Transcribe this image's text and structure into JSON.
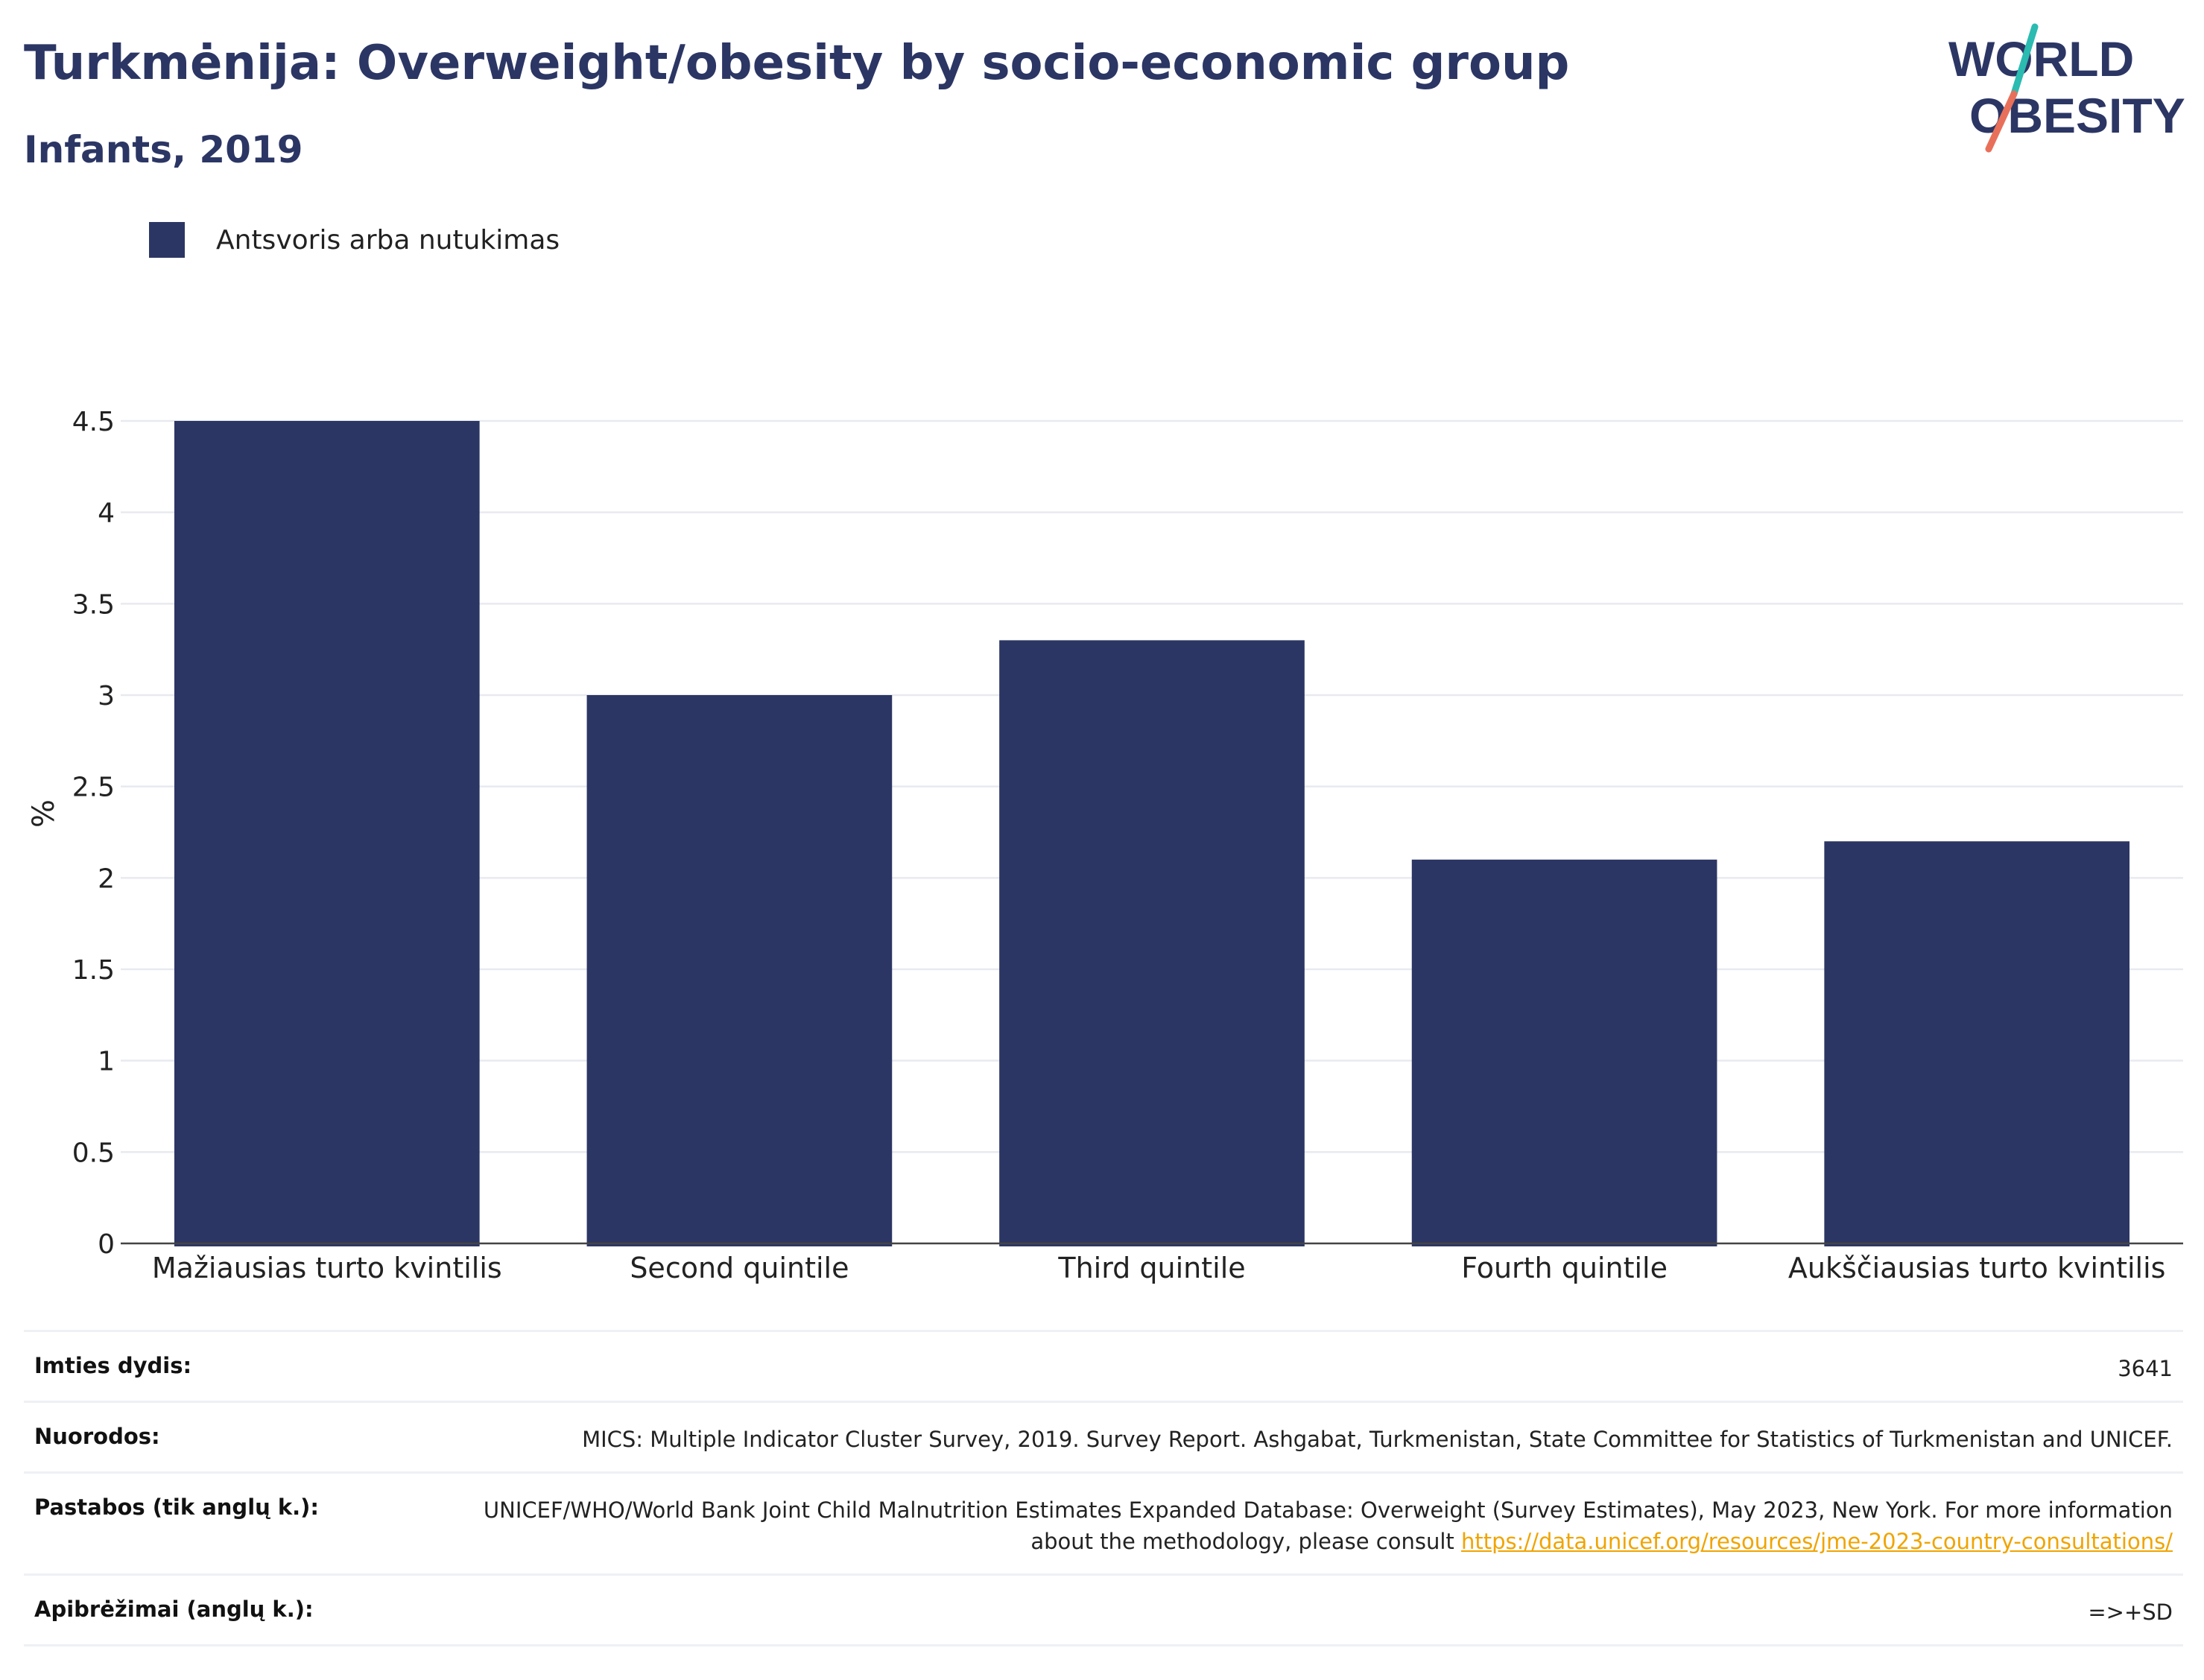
{
  "header": {
    "title": "Turkmėnija: Overweight/obesity by socio-economic group",
    "subtitle": "Infants, 2019"
  },
  "logo": {
    "line1": "WORLD",
    "line2": "OBESITY",
    "colors": {
      "text": "#2b3664",
      "slash_top": "#2bbbb0",
      "slash_bottom": "#e8705a"
    }
  },
  "legend": {
    "label": "Antsvoris arba nutukimas",
    "color": "#2b3664"
  },
  "chart_data": {
    "type": "bar",
    "categories": [
      "Mažiausias turto kvintilis",
      "Second quintile",
      "Third quintile",
      "Fourth quintile",
      "Aukščiausias turto kvintilis"
    ],
    "series": [
      {
        "name": "Antsvoris arba nutukimas",
        "values": [
          4.5,
          3.0,
          3.3,
          2.1,
          2.2
        ],
        "color": "#2b3664"
      }
    ],
    "ylabel": "%",
    "xlabel": "",
    "ylim": [
      0,
      4.5
    ],
    "yticks": [
      0,
      0.5,
      1,
      1.5,
      2,
      2.5,
      3,
      3.5,
      4,
      4.5
    ],
    "ytick_labels": [
      "0",
      "0.5",
      "1",
      "1.5",
      "2",
      "2.5",
      "3",
      "3.5",
      "4",
      "4.5"
    ],
    "grid": true,
    "legend_position": "top-left"
  },
  "info": {
    "sample_size": {
      "label": "Imties dydis:",
      "value": "3641"
    },
    "references": {
      "label": "Nuorodos:",
      "value": "MICS: Multiple Indicator Cluster Survey, 2019. Survey Report. Ashgabat, Turkmenistan, State Committee for Statistics of Turkmenistan and UNICEF."
    },
    "notes": {
      "label": "Pastabos (tik anglų k.):",
      "value": "UNICEF/WHO/World Bank Joint Child Malnutrition Estimates Expanded Database: Overweight (Survey Estimates), May 2023, New York. For more information about the methodology, please consult ",
      "link": "https://data.unicef.org/resources/jme-2023-country-consultations/",
      "link_color": "#f0a400"
    },
    "definitions": {
      "label": "Apibrėžimai (anglų k.):",
      "value": "=>+SD"
    }
  }
}
